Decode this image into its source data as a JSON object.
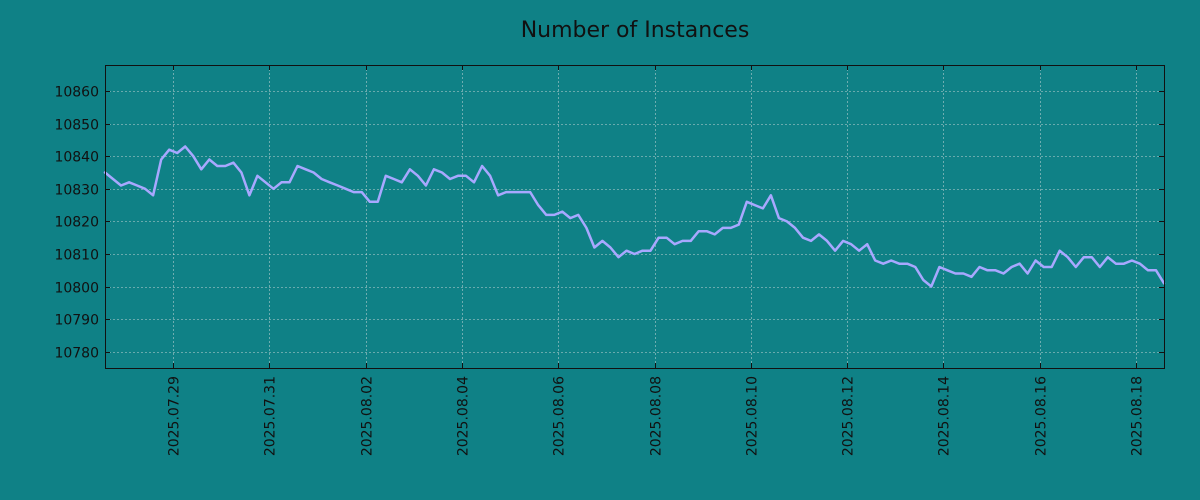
{
  "chart_data": {
    "type": "line",
    "title": "Number of Instances",
    "xlabel": "",
    "ylabel": "",
    "grid": true,
    "line_color": "#a8a8ff",
    "background_color": "#0f8186",
    "x_range": [
      "2025-07-27T14:00",
      "2025-08-18T14:00"
    ],
    "ylim": [
      10775,
      10868
    ],
    "x_ticks": [
      "2025.07.29",
      "2025.07.31",
      "2025.08.02",
      "2025.08.04",
      "2025.08.06",
      "2025.08.08",
      "2025.08.10",
      "2025.08.12",
      "2025.08.14",
      "2025.08.16",
      "2025.08.18"
    ],
    "y_ticks": [
      10780,
      10790,
      10800,
      10810,
      10820,
      10830,
      10840,
      10850,
      10860
    ],
    "series": [
      {
        "name": "",
        "points": [
          [
            "2025-07-27T14:00",
            10835
          ],
          [
            "2025-07-27T18:00",
            10833
          ],
          [
            "2025-07-27T22:00",
            10831
          ],
          [
            "2025-07-28T02:00",
            10832
          ],
          [
            "2025-07-28T06:00",
            10831
          ],
          [
            "2025-07-28T10:00",
            10830
          ],
          [
            "2025-07-28T14:00",
            10828
          ],
          [
            "2025-07-28T18:00",
            10839
          ],
          [
            "2025-07-28T22:00",
            10842
          ],
          [
            "2025-07-29T02:00",
            10841
          ],
          [
            "2025-07-29T06:00",
            10843
          ],
          [
            "2025-07-29T10:00",
            10840
          ],
          [
            "2025-07-29T14:00",
            10836
          ],
          [
            "2025-07-29T18:00",
            10839
          ],
          [
            "2025-07-29T22:00",
            10837
          ],
          [
            "2025-07-30T02:00",
            10837
          ],
          [
            "2025-07-30T06:00",
            10838
          ],
          [
            "2025-07-30T10:00",
            10835
          ],
          [
            "2025-07-30T14:00",
            10828
          ],
          [
            "2025-07-30T18:00",
            10834
          ],
          [
            "2025-07-30T22:00",
            10832
          ],
          [
            "2025-07-31T02:00",
            10830
          ],
          [
            "2025-07-31T06:00",
            10832
          ],
          [
            "2025-07-31T10:00",
            10832
          ],
          [
            "2025-07-31T14:00",
            10837
          ],
          [
            "2025-07-31T18:00",
            10836
          ],
          [
            "2025-07-31T22:00",
            10835
          ],
          [
            "2025-08-01T02:00",
            10833
          ],
          [
            "2025-08-01T06:00",
            10832
          ],
          [
            "2025-08-01T10:00",
            10831
          ],
          [
            "2025-08-01T14:00",
            10830
          ],
          [
            "2025-08-01T18:00",
            10829
          ],
          [
            "2025-08-01T22:00",
            10829
          ],
          [
            "2025-08-02T02:00",
            10826
          ],
          [
            "2025-08-02T06:00",
            10826
          ],
          [
            "2025-08-02T10:00",
            10834
          ],
          [
            "2025-08-02T14:00",
            10833
          ],
          [
            "2025-08-02T18:00",
            10832
          ],
          [
            "2025-08-02T22:00",
            10836
          ],
          [
            "2025-08-03T02:00",
            10834
          ],
          [
            "2025-08-03T06:00",
            10831
          ],
          [
            "2025-08-03T10:00",
            10836
          ],
          [
            "2025-08-03T14:00",
            10835
          ],
          [
            "2025-08-03T18:00",
            10833
          ],
          [
            "2025-08-03T22:00",
            10834
          ],
          [
            "2025-08-04T02:00",
            10834
          ],
          [
            "2025-08-04T06:00",
            10832
          ],
          [
            "2025-08-04T10:00",
            10837
          ],
          [
            "2025-08-04T14:00",
            10834
          ],
          [
            "2025-08-04T18:00",
            10828
          ],
          [
            "2025-08-04T22:00",
            10829
          ],
          [
            "2025-08-05T02:00",
            10829
          ],
          [
            "2025-08-05T06:00",
            10829
          ],
          [
            "2025-08-05T10:00",
            10829
          ],
          [
            "2025-08-05T14:00",
            10825
          ],
          [
            "2025-08-05T18:00",
            10822
          ],
          [
            "2025-08-05T22:00",
            10822
          ],
          [
            "2025-08-06T02:00",
            10823
          ],
          [
            "2025-08-06T06:00",
            10821
          ],
          [
            "2025-08-06T10:00",
            10822
          ],
          [
            "2025-08-06T14:00",
            10818
          ],
          [
            "2025-08-06T18:00",
            10812
          ],
          [
            "2025-08-06T22:00",
            10814
          ],
          [
            "2025-08-07T02:00",
            10812
          ],
          [
            "2025-08-07T06:00",
            10809
          ],
          [
            "2025-08-07T10:00",
            10811
          ],
          [
            "2025-08-07T14:00",
            10810
          ],
          [
            "2025-08-07T18:00",
            10811
          ],
          [
            "2025-08-07T22:00",
            10811
          ],
          [
            "2025-08-08T02:00",
            10815
          ],
          [
            "2025-08-08T06:00",
            10815
          ],
          [
            "2025-08-08T10:00",
            10813
          ],
          [
            "2025-08-08T14:00",
            10814
          ],
          [
            "2025-08-08T18:00",
            10814
          ],
          [
            "2025-08-08T22:00",
            10817
          ],
          [
            "2025-08-09T02:00",
            10817
          ],
          [
            "2025-08-09T06:00",
            10816
          ],
          [
            "2025-08-09T10:00",
            10818
          ],
          [
            "2025-08-09T14:00",
            10818
          ],
          [
            "2025-08-09T18:00",
            10819
          ],
          [
            "2025-08-09T22:00",
            10826
          ],
          [
            "2025-08-10T02:00",
            10825
          ],
          [
            "2025-08-10T06:00",
            10824
          ],
          [
            "2025-08-10T10:00",
            10828
          ],
          [
            "2025-08-10T14:00",
            10821
          ],
          [
            "2025-08-10T18:00",
            10820
          ],
          [
            "2025-08-10T22:00",
            10818
          ],
          [
            "2025-08-11T02:00",
            10815
          ],
          [
            "2025-08-11T06:00",
            10814
          ],
          [
            "2025-08-11T10:00",
            10816
          ],
          [
            "2025-08-11T14:00",
            10814
          ],
          [
            "2025-08-11T18:00",
            10811
          ],
          [
            "2025-08-11T22:00",
            10814
          ],
          [
            "2025-08-12T02:00",
            10813
          ],
          [
            "2025-08-12T06:00",
            10811
          ],
          [
            "2025-08-12T10:00",
            10813
          ],
          [
            "2025-08-12T14:00",
            10808
          ],
          [
            "2025-08-12T18:00",
            10807
          ],
          [
            "2025-08-12T22:00",
            10808
          ],
          [
            "2025-08-13T02:00",
            10807
          ],
          [
            "2025-08-13T06:00",
            10807
          ],
          [
            "2025-08-13T10:00",
            10806
          ],
          [
            "2025-08-13T14:00",
            10802
          ],
          [
            "2025-08-13T18:00",
            10800
          ],
          [
            "2025-08-13T22:00",
            10806
          ],
          [
            "2025-08-14T02:00",
            10805
          ],
          [
            "2025-08-14T06:00",
            10804
          ],
          [
            "2025-08-14T10:00",
            10804
          ],
          [
            "2025-08-14T14:00",
            10803
          ],
          [
            "2025-08-14T18:00",
            10806
          ],
          [
            "2025-08-14T22:00",
            10805
          ],
          [
            "2025-08-15T02:00",
            10805
          ],
          [
            "2025-08-15T06:00",
            10804
          ],
          [
            "2025-08-15T10:00",
            10806
          ],
          [
            "2025-08-15T14:00",
            10807
          ],
          [
            "2025-08-15T18:00",
            10804
          ],
          [
            "2025-08-15T22:00",
            10808
          ],
          [
            "2025-08-16T02:00",
            10806
          ],
          [
            "2025-08-16T06:00",
            10806
          ],
          [
            "2025-08-16T10:00",
            10811
          ],
          [
            "2025-08-16T14:00",
            10809
          ],
          [
            "2025-08-16T18:00",
            10806
          ],
          [
            "2025-08-16T22:00",
            10809
          ],
          [
            "2025-08-17T02:00",
            10809
          ],
          [
            "2025-08-17T06:00",
            10806
          ],
          [
            "2025-08-17T10:00",
            10809
          ],
          [
            "2025-08-17T14:00",
            10807
          ],
          [
            "2025-08-17T18:00",
            10807
          ],
          [
            "2025-08-17T22:00",
            10808
          ],
          [
            "2025-08-18T02:00",
            10807
          ],
          [
            "2025-08-18T06:00",
            10805
          ],
          [
            "2025-08-18T10:00",
            10805
          ],
          [
            "2025-08-18T14:00",
            10801
          ]
        ]
      }
    ]
  }
}
